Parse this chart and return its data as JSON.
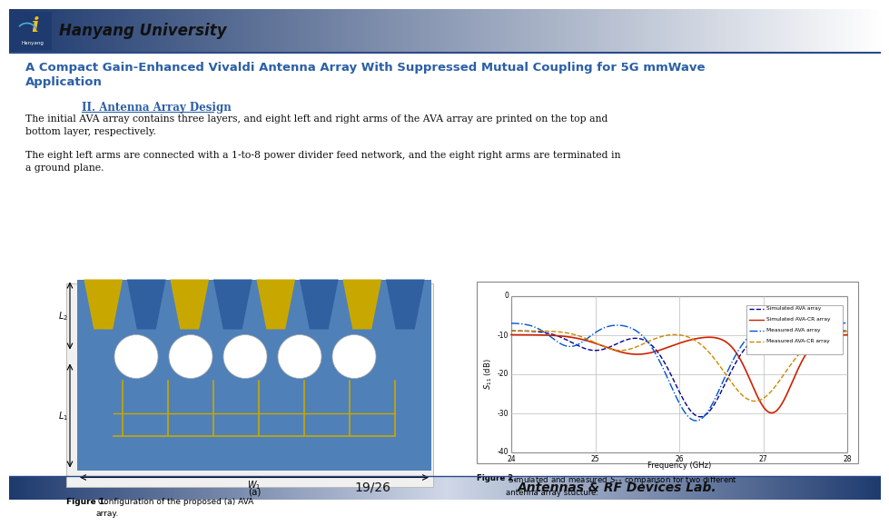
{
  "header_text": "Hanyang University",
  "title_line1": "A Compact Gain-Enhanced Vivaldi Antenna Array With Suppressed Mutual Coupling for 5G mmWave",
  "title_line2": "Application",
  "section_heading": "II. Antenna Array Design",
  "para1_line1": "The initial AVA array contains three layers, and eight left and right arms of the AVA array are printed on the top and",
  "para1_line2": "bottom layer, respectively.",
  "para2_line1": "The eight left arms are connected with a 1-to-8 power divider feed network, and the eight right arms are terminated in",
  "para2_line2": "a ground plane.",
  "fig1_caption_bold": "Figure 1.",
  "fig1_caption_rest": " Configuration of the proposed (a) AVA\narray.",
  "fig2_caption_bold": "Figure 2.",
  "fig2_caption_rest": " Simulated and measured S11 comparison for two different\nantenna array stucture.",
  "footer_page": "19/26",
  "footer_lab": "Antennas & RF Devices Lab.",
  "title_color": "#2b5fa6",
  "section_color": "#2b5fa6",
  "body_color": "#111111",
  "bg_color": "#ffffff",
  "header_dark": "#1e3a6e",
  "header_light": "#c8d4e8"
}
